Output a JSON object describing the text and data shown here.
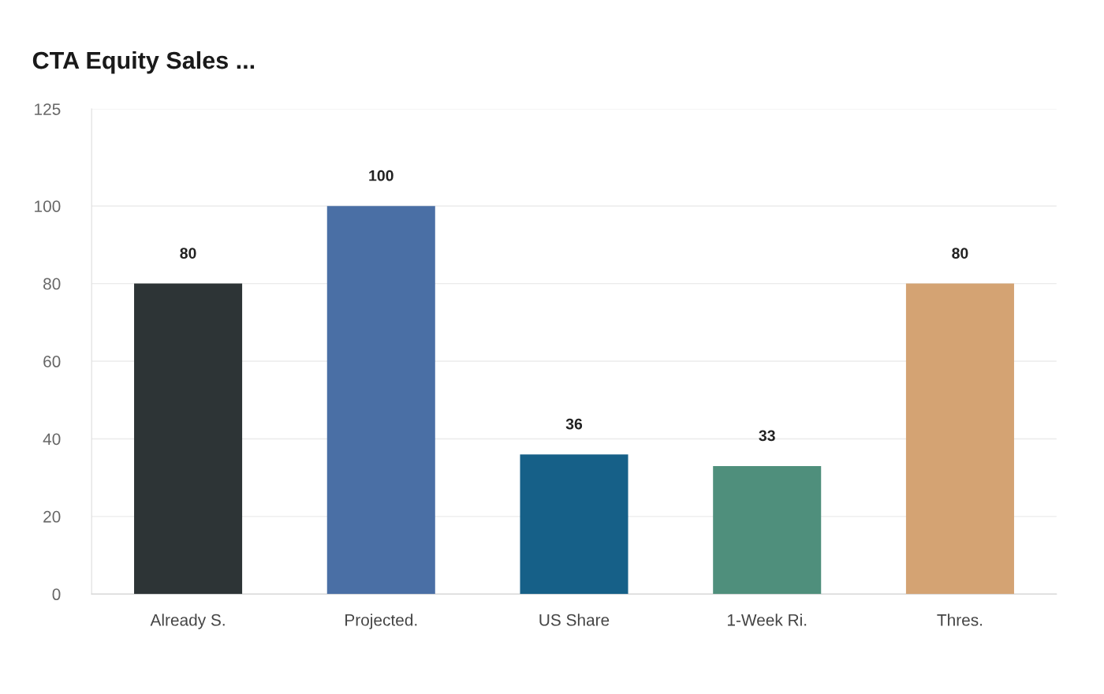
{
  "chart_data": {
    "type": "bar",
    "title": "CTA Equity Sales ...",
    "categories": [
      "Already S.",
      "Projected.",
      "US Share",
      "1-Week Ri.",
      "Thres."
    ],
    "values": [
      80,
      100,
      36,
      33,
      80
    ],
    "colors": [
      "#2d3436",
      "#4a6fa5",
      "#166088",
      "#4f8f7c",
      "#d4a373"
    ],
    "ylim": [
      0,
      125
    ],
    "yticks": [
      0,
      20,
      40,
      60,
      80,
      100,
      125
    ],
    "grid": "y",
    "data_labels": true,
    "legend": false
  }
}
